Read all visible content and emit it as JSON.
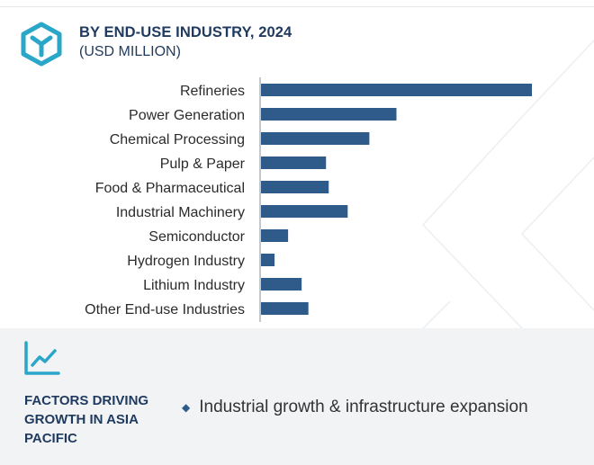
{
  "header": {
    "title": "BY END-USE INDUSTRY, 2024",
    "subtitle": "(USD MILLION)",
    "icon": "cube-icon"
  },
  "colors": {
    "bar": "#2e5b8a",
    "title": "#1f3a5f",
    "icon": "#2aa6c9",
    "footer_bg": "#f2f3f5"
  },
  "chart_data": {
    "type": "bar",
    "orientation": "horizontal",
    "categories": [
      "Refineries",
      "Power Generation",
      "Chemical Processing",
      "Pulp & Paper",
      "Food & Pharmaceutical",
      "Industrial Machinery",
      "Semiconductor",
      "Hydrogen Industry",
      "Lithium Industry",
      "Other End-use Industries"
    ],
    "values": [
      100,
      50,
      40,
      24,
      25,
      32,
      10,
      5,
      15,
      17.5
    ],
    "xlim": [
      0,
      100
    ],
    "grid": false,
    "legend": "none"
  },
  "footer": {
    "icon": "trend-line-icon",
    "title": "FACTORS DRIVING GROWTH IN ASIA PACIFIC",
    "bullets": [
      {
        "text": "Industrial growth & infrastructure expansion"
      }
    ]
  }
}
